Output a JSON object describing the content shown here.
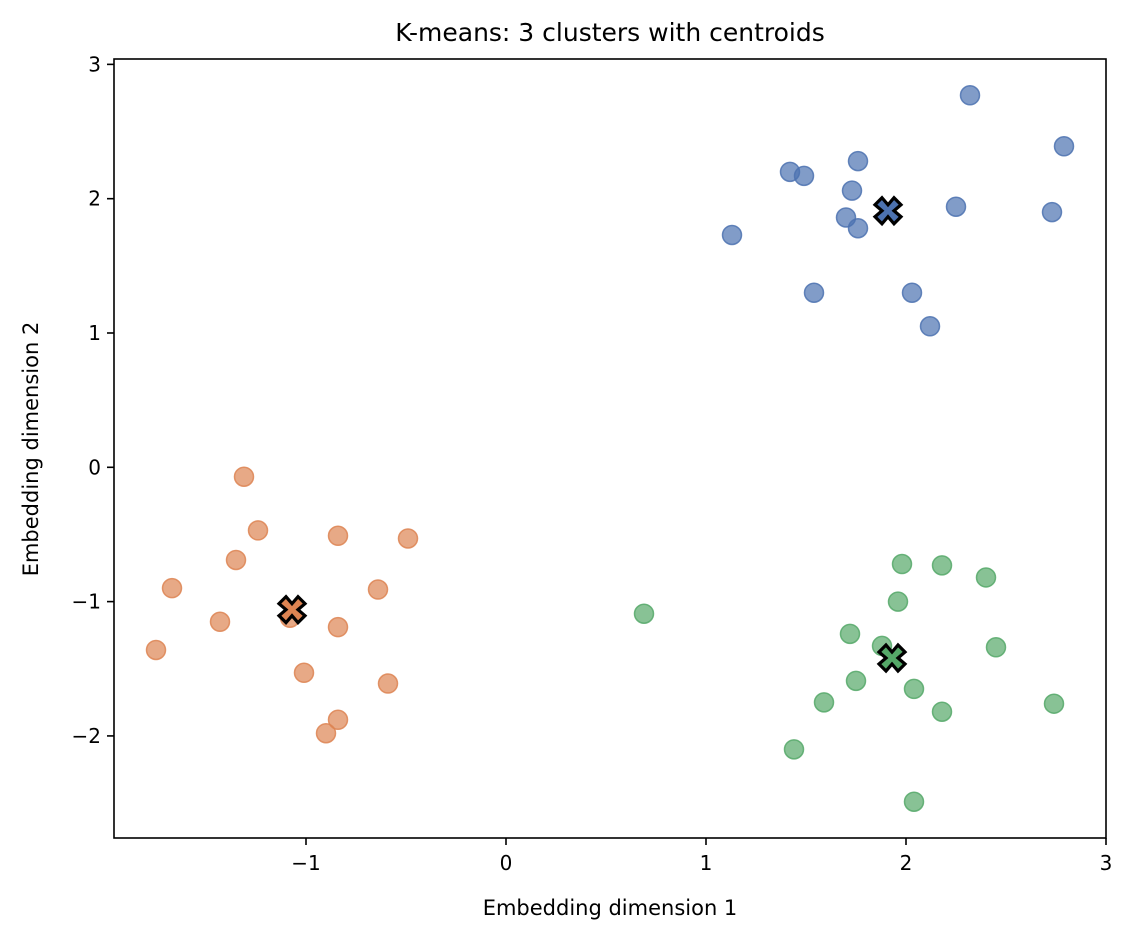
{
  "chart_data": {
    "type": "scatter",
    "title": "K-means: 3 clusters with centroids",
    "xlabel": "Embedding dimension 1",
    "ylabel": "Embedding dimension 2",
    "xlim": [
      -1.96,
      3.0
    ],
    "ylim": [
      -2.76,
      3.04
    ],
    "xticks": [
      -1,
      0,
      1,
      2,
      3
    ],
    "yticks": [
      -2,
      -1,
      0,
      1,
      2,
      3
    ],
    "xtick_labels": [
      "−1",
      "0",
      "1",
      "2",
      "3"
    ],
    "ytick_labels": [
      "−2",
      "−1",
      "0",
      "1",
      "2",
      "3"
    ],
    "grid": false,
    "legend": false,
    "series": [
      {
        "color": "#4c72b0",
        "points": [
          [
            2.32,
            2.77
          ],
          [
            2.79,
            2.39
          ],
          [
            1.42,
            2.2
          ],
          [
            1.49,
            2.17
          ],
          [
            1.76,
            2.28
          ],
          [
            1.73,
            2.06
          ],
          [
            2.25,
            1.94
          ],
          [
            2.73,
            1.9
          ],
          [
            1.7,
            1.86
          ],
          [
            1.76,
            1.78
          ],
          [
            1.13,
            1.73
          ],
          [
            1.54,
            1.3
          ],
          [
            2.03,
            1.3
          ],
          [
            2.12,
            1.05
          ]
        ],
        "centroid": [
          1.91,
          1.91
        ]
      },
      {
        "color": "#dd8452",
        "points": [
          [
            -1.31,
            -0.07
          ],
          [
            -1.24,
            -0.47
          ],
          [
            -0.84,
            -0.51
          ],
          [
            -0.49,
            -0.53
          ],
          [
            -1.35,
            -0.69
          ],
          [
            -1.67,
            -0.9
          ],
          [
            -0.64,
            -0.91
          ],
          [
            -1.43,
            -1.15
          ],
          [
            -0.84,
            -1.19
          ],
          [
            -1.75,
            -1.36
          ],
          [
            -1.01,
            -1.53
          ],
          [
            -0.59,
            -1.61
          ],
          [
            -0.84,
            -1.88
          ],
          [
            -0.9,
            -1.98
          ],
          [
            -1.08,
            -1.12
          ]
        ],
        "centroid": [
          -1.07,
          -1.06
        ]
      },
      {
        "color": "#55a868",
        "points": [
          [
            1.98,
            -0.72
          ],
          [
            2.18,
            -0.73
          ],
          [
            2.4,
            -0.82
          ],
          [
            1.96,
            -1.0
          ],
          [
            0.69,
            -1.09
          ],
          [
            1.72,
            -1.24
          ],
          [
            1.88,
            -1.33
          ],
          [
            2.45,
            -1.34
          ],
          [
            1.75,
            -1.59
          ],
          [
            2.04,
            -1.65
          ],
          [
            1.59,
            -1.75
          ],
          [
            2.18,
            -1.82
          ],
          [
            2.74,
            -1.76
          ],
          [
            1.44,
            -2.1
          ],
          [
            2.04,
            -2.49
          ]
        ],
        "centroid": [
          1.93,
          -1.42
        ]
      }
    ]
  }
}
